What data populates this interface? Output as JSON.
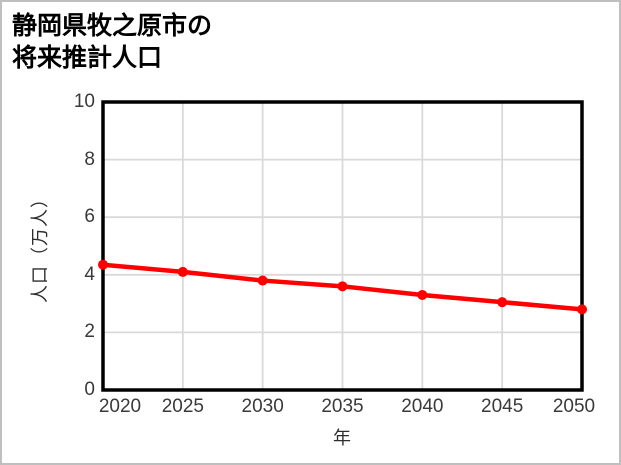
{
  "title": {
    "line1": "静岡県牧之原市の",
    "line2": "将来推計人口"
  },
  "chart_data": {
    "type": "line",
    "title": "静岡県牧之原市の将来推計人口",
    "x": [
      2020,
      2025,
      2030,
      2035,
      2040,
      2045,
      2050
    ],
    "values": [
      4.35,
      4.1,
      3.8,
      3.6,
      3.3,
      3.05,
      2.8
    ],
    "xlabel": "年",
    "ylabel": "人口（万人）",
    "xlim": [
      2020,
      2050
    ],
    "ylim": [
      0,
      10
    ],
    "xticks": [
      2020,
      2025,
      2030,
      2035,
      2040,
      2045,
      2050
    ],
    "yticks": [
      0,
      2,
      4,
      6,
      8,
      10
    ],
    "grid": true,
    "legend": "none",
    "colors": {
      "line": "#ff0000",
      "marker": "#ff0000",
      "grid": "#d9d9d9",
      "axis_frame": "#000000",
      "tick_text": "#3a3a3a",
      "title_text": "#000000"
    }
  }
}
